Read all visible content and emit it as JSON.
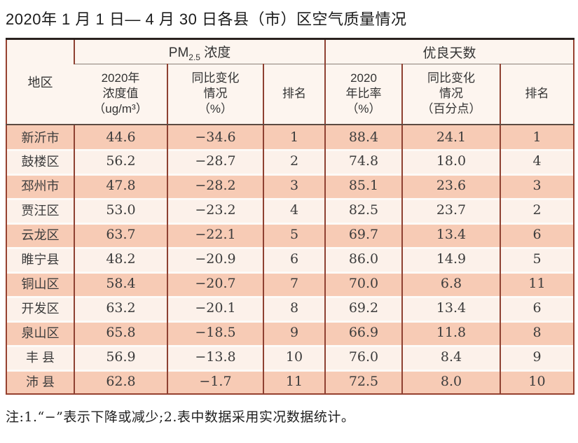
{
  "title": "2020年 1 月 1 日— 4 月 30 日各县（市）区空气质量情况",
  "note": "注:1.“−”表示下降或减少;2.表中数据采用实况数据统计。",
  "colors": {
    "border_red": "#96412f",
    "top_rule": "#2a211e",
    "header_bg": "#fdf5ef",
    "row_odd": "#f7cbb5",
    "row_even": "#fcf1ea"
  },
  "table": {
    "region_header": "地区",
    "pm_group": {
      "prefix": "PM",
      "sub": "2.5",
      "suffix": " 浓度"
    },
    "days_group": "优良天数",
    "sub_headers": [
      {
        "lines": [
          "2020年",
          "浓度值",
          "（ug/m³）"
        ]
      },
      {
        "lines": [
          "同比变化",
          "情况",
          "（%）"
        ]
      },
      {
        "lines": [
          "排名"
        ]
      },
      {
        "lines": [
          "2020",
          "年比率",
          "（%）"
        ]
      },
      {
        "lines": [
          "同比变化",
          "情况",
          "（百分点）"
        ]
      },
      {
        "lines": [
          "排名"
        ]
      }
    ],
    "rows": [
      {
        "region": "新沂市",
        "pm_value": "44.6",
        "pm_change": "−34.6",
        "pm_rank": "1",
        "days_rate": "88.4",
        "days_change": "24.1",
        "days_rank": "1"
      },
      {
        "region": "鼓楼区",
        "pm_value": "56.2",
        "pm_change": "−28.7",
        "pm_rank": "2",
        "days_rate": "74.8",
        "days_change": "18.0",
        "days_rank": "4"
      },
      {
        "region": "邳州市",
        "pm_value": "47.8",
        "pm_change": "−28.2",
        "pm_rank": "3",
        "days_rate": "85.1",
        "days_change": "23.6",
        "days_rank": "3"
      },
      {
        "region": "贾汪区",
        "pm_value": "53.0",
        "pm_change": "−23.2",
        "pm_rank": "4",
        "days_rate": "82.5",
        "days_change": "23.7",
        "days_rank": "2"
      },
      {
        "region": "云龙区",
        "pm_value": "63.7",
        "pm_change": "−22.1",
        "pm_rank": "5",
        "days_rate": "69.7",
        "days_change": "13.4",
        "days_rank": "6"
      },
      {
        "region": "睢宁县",
        "pm_value": "48.2",
        "pm_change": "−20.9",
        "pm_rank": "6",
        "days_rate": "86.0",
        "days_change": "14.9",
        "days_rank": "5"
      },
      {
        "region": "铜山区",
        "pm_value": "58.4",
        "pm_change": "−20.7",
        "pm_rank": "7",
        "days_rate": "70.0",
        "days_change": "6.8",
        "days_rank": "11"
      },
      {
        "region": "开发区",
        "pm_value": "63.2",
        "pm_change": "−20.1",
        "pm_rank": "8",
        "days_rate": "69.2",
        "days_change": "13.4",
        "days_rank": "6"
      },
      {
        "region": "泉山区",
        "pm_value": "65.8",
        "pm_change": "−18.5",
        "pm_rank": "9",
        "days_rate": "66.9",
        "days_change": "11.8",
        "days_rank": "8"
      },
      {
        "region": "丰 县",
        "pm_value": "56.9",
        "pm_change": "−13.8",
        "pm_rank": "10",
        "days_rate": "76.0",
        "days_change": "8.4",
        "days_rank": "9"
      },
      {
        "region": "沛 县",
        "pm_value": "62.8",
        "pm_change": "−1.7",
        "pm_rank": "11",
        "days_rate": "72.5",
        "days_change": "8.0",
        "days_rank": "10"
      }
    ]
  }
}
